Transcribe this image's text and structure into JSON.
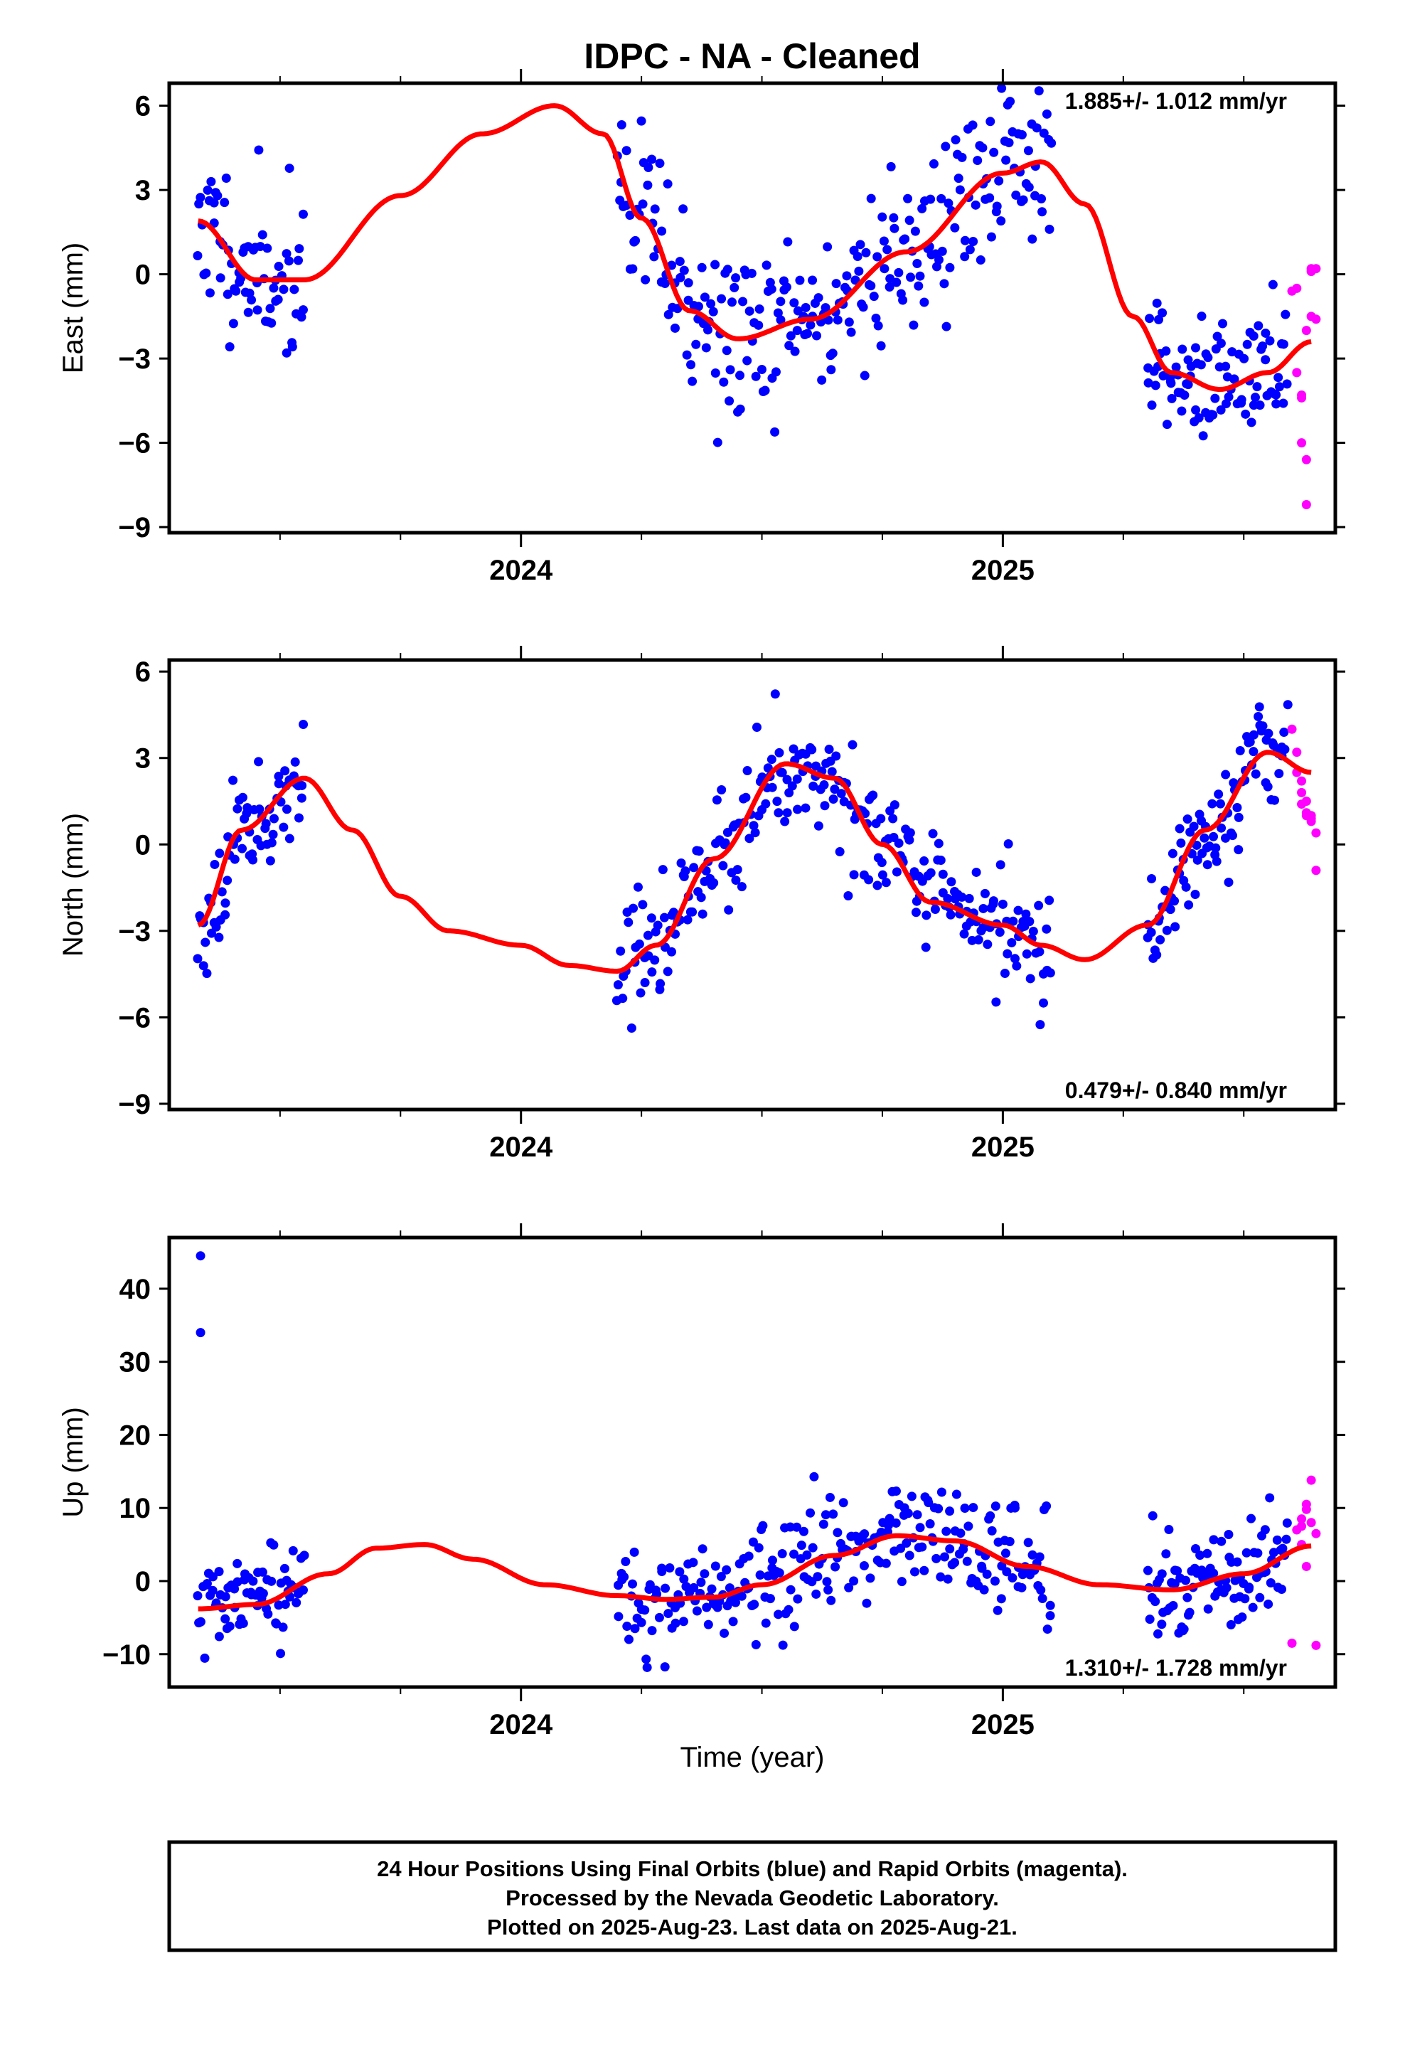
{
  "title": "IDPC  - NA - Cleaned",
  "colors": {
    "final_orbits": "#0000ff",
    "rapid_orbits": "#ff00ff",
    "model": "#ff0000",
    "axis": "#000000"
  },
  "xaxis": {
    "label": "Time (year)",
    "tick_labels": [
      "2024",
      "2025"
    ]
  },
  "footer": {
    "lines": [
      "24 Hour Positions Using Final Orbits (blue) and Rapid Orbits (magenta).",
      "Processed by the Nevada Geodetic Laboratory.",
      "Plotted on 2025-Aug-23. Last data on 2025-Aug-21."
    ]
  },
  "chart_data": [
    {
      "type": "scatter",
      "ylabel": "East (mm)",
      "rate_text": "1.885+/- 1.012 mm/yr",
      "rate_position": "top-right",
      "xlim": [
        2023.27,
        2025.69
      ],
      "ylim": [
        -9.2,
        6.8
      ],
      "yticks": [
        6,
        3,
        0,
        -3,
        -6,
        -9
      ],
      "xticks": [
        2024.0,
        2025.0
      ],
      "model_x": [
        2023.33,
        2023.45,
        2023.55,
        2023.75,
        2023.92,
        2024.07,
        2024.17,
        2024.25,
        2024.35,
        2024.45,
        2024.6,
        2024.8,
        2025.0,
        2025.08,
        2025.17,
        2025.27,
        2025.35,
        2025.45,
        2025.55,
        2025.64
      ],
      "model_y": [
        1.9,
        -0.2,
        -0.2,
        2.8,
        5.0,
        6.0,
        5.0,
        2.0,
        -1.3,
        -2.3,
        -1.6,
        0.8,
        3.6,
        4.0,
        2.5,
        -1.5,
        -3.5,
        -4.1,
        -3.5,
        -2.4
      ],
      "series": [
        {
          "name": "Final Orbits",
          "color": "#0000ff",
          "segments": [
            {
              "x_start": 2023.33,
              "x_end": 2023.55,
              "n": 70,
              "noise": 1.3
            },
            {
              "x_start": 2024.2,
              "x_end": 2025.1,
              "n": 260,
              "noise": 1.6
            },
            {
              "x_start": 2025.3,
              "x_end": 2025.59,
              "n": 95,
              "noise": 1.1
            }
          ]
        },
        {
          "name": "Rapid Orbits",
          "color": "#ff00ff",
          "x": [
            2025.6,
            2025.61,
            2025.61,
            2025.62,
            2025.62,
            2025.63,
            2025.63,
            2025.64,
            2025.64,
            2025.65,
            2025.65,
            2025.63,
            2025.62,
            2025.64
          ],
          "y": [
            -0.6,
            -0.5,
            -3.5,
            -4.3,
            -6.0,
            -6.6,
            -8.2,
            -1.5,
            0.2,
            0.2,
            -1.6,
            -2.0,
            -4.4,
            0.1
          ]
        }
      ]
    },
    {
      "type": "scatter",
      "ylabel": "North (mm)",
      "rate_text": "0.479+/- 0.840 mm/yr",
      "rate_position": "bottom-right",
      "xlim": [
        2023.27,
        2025.69
      ],
      "ylim": [
        -9.2,
        6.4
      ],
      "yticks": [
        6,
        3,
        0,
        -3,
        -6,
        -9
      ],
      "xticks": [
        2024.0,
        2025.0
      ],
      "model_x": [
        2023.33,
        2023.42,
        2023.55,
        2023.65,
        2023.75,
        2023.85,
        2024.0,
        2024.1,
        2024.2,
        2024.28,
        2024.4,
        2024.55,
        2024.65,
        2024.75,
        2024.85,
        2025.0,
        2025.08,
        2025.17,
        2025.3,
        2025.42,
        2025.55,
        2025.64
      ],
      "model_y": [
        -2.8,
        0.5,
        2.3,
        0.5,
        -1.8,
        -3.0,
        -3.5,
        -4.2,
        -4.4,
        -3.5,
        -0.5,
        2.8,
        2.3,
        0.0,
        -2.0,
        -2.8,
        -3.5,
        -4.0,
        -2.8,
        0.5,
        3.2,
        2.5
      ],
      "series": [
        {
          "name": "Final Orbits",
          "color": "#0000ff",
          "segments": [
            {
              "x_start": 2023.33,
              "x_end": 2023.55,
              "n": 70,
              "noise": 0.9
            },
            {
              "x_start": 2024.2,
              "x_end": 2025.1,
              "n": 260,
              "noise": 1.0
            },
            {
              "x_start": 2025.3,
              "x_end": 2025.59,
              "n": 95,
              "noise": 0.9
            }
          ]
        },
        {
          "name": "Rapid Orbits",
          "color": "#ff00ff",
          "x": [
            2025.6,
            2025.61,
            2025.61,
            2025.62,
            2025.62,
            2025.63,
            2025.63,
            2025.64,
            2025.64,
            2025.65,
            2025.65,
            2025.63,
            2025.62,
            2025.64
          ],
          "y": [
            4.0,
            3.2,
            2.5,
            1.8,
            1.4,
            1.1,
            1.0,
            1.0,
            0.9,
            0.4,
            -0.9,
            1.5,
            2.2,
            0.8
          ]
        }
      ]
    },
    {
      "type": "scatter",
      "ylabel": "Up (mm)",
      "rate_text": "1.310+/- 1.728 mm/yr",
      "rate_position": "bottom-right",
      "xlim": [
        2023.27,
        2025.69
      ],
      "ylim": [
        -14.5,
        47
      ],
      "yticks": [
        40,
        30,
        20,
        10,
        0,
        -10
      ],
      "xticks": [
        2024.0,
        2025.0
      ],
      "model_x": [
        2023.33,
        2023.45,
        2023.6,
        2023.7,
        2023.8,
        2023.9,
        2024.05,
        2024.2,
        2024.3,
        2024.4,
        2024.5,
        2024.65,
        2024.78,
        2024.9,
        2025.05,
        2025.2,
        2025.35,
        2025.5,
        2025.64
      ],
      "model_y": [
        -3.8,
        -3.2,
        1.0,
        4.5,
        5.0,
        3.0,
        -0.5,
        -2.0,
        -2.5,
        -2.2,
        -0.5,
        3.5,
        6.2,
        5.5,
        2.0,
        -0.5,
        -1.2,
        1.0,
        4.8
      ],
      "series": [
        {
          "name": "Final Orbits",
          "color": "#0000ff",
          "segments": [
            {
              "x_start": 2023.33,
              "x_end": 2023.55,
              "n": 70,
              "noise": 3.3
            },
            {
              "x_start": 2024.2,
              "x_end": 2025.1,
              "n": 260,
              "noise": 3.8
            },
            {
              "x_start": 2025.3,
              "x_end": 2025.59,
              "n": 95,
              "noise": 3.3
            }
          ],
          "extra_x": [
            2023.335,
            2023.335
          ],
          "extra_y": [
            44.5,
            34.0
          ]
        },
        {
          "name": "Rapid Orbits",
          "color": "#ff00ff",
          "x": [
            2025.6,
            2025.61,
            2025.62,
            2025.62,
            2025.63,
            2025.63,
            2025.64,
            2025.64,
            2025.65,
            2025.65,
            2025.63,
            2025.62
          ],
          "y": [
            -8.5,
            7.0,
            7.5,
            8.5,
            9.8,
            10.5,
            13.8,
            8.0,
            6.5,
            -8.8,
            2.0,
            5.0
          ]
        }
      ]
    }
  ]
}
